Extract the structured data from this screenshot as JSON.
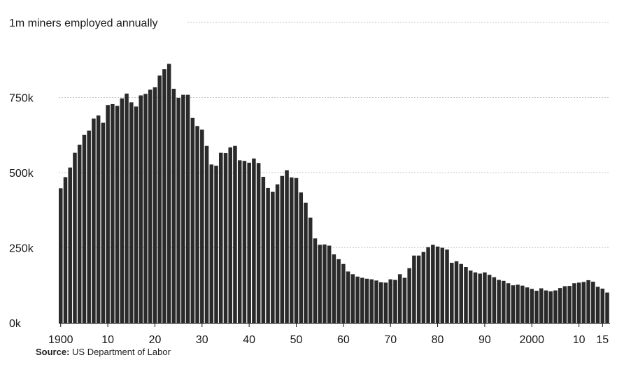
{
  "chart_data": {
    "type": "bar",
    "y_tick_labels": [
      "0k",
      "250k",
      "500k",
      "750k",
      "1m miners employed annually"
    ],
    "y_tick_values": [
      0,
      250000,
      500000,
      750000,
      1000000
    ],
    "ylim": [
      0,
      1000000
    ],
    "x_tick_labels": [
      "1900",
      "10",
      "20",
      "30",
      "40",
      "50",
      "60",
      "70",
      "80",
      "90",
      "2000",
      "10",
      "15"
    ],
    "x_tick_years": [
      1900,
      1910,
      1920,
      1930,
      1940,
      1950,
      1960,
      1970,
      1980,
      1990,
      2000,
      2010,
      2015
    ],
    "x_start_year": 1900,
    "values": [
      448000,
      485000,
      517000,
      566000,
      593000,
      626000,
      640000,
      680000,
      690000,
      666000,
      725000,
      728000,
      722000,
      747000,
      763000,
      734000,
      720000,
      757000,
      762000,
      776000,
      784000,
      823000,
      844000,
      862000,
      779000,
      749000,
      759000,
      759000,
      682000,
      655000,
      643000,
      589000,
      527000,
      523000,
      566000,
      565000,
      584000,
      589000,
      541000,
      539000,
      533000,
      547000,
      532000,
      486000,
      449000,
      436000,
      461000,
      489000,
      508000,
      484000,
      482000,
      434000,
      400000,
      350000,
      281000,
      260000,
      261000,
      257000,
      228000,
      212000,
      196000,
      171000,
      162000,
      154000,
      150000,
      147000,
      145000,
      141000,
      135000,
      134000,
      145000,
      143000,
      162000,
      150000,
      182000,
      224000,
      224000,
      236000,
      252000,
      260000,
      254000,
      250000,
      244000,
      200000,
      205000,
      196000,
      186000,
      174000,
      168000,
      164000,
      168000,
      160000,
      152000,
      143000,
      140000,
      132000,
      125000,
      127000,
      124000,
      118000,
      113000,
      107000,
      115000,
      108000,
      105000,
      108000,
      116000,
      122000,
      123000,
      132000,
      134000,
      136000,
      142000,
      137000,
      120000,
      114000,
      101000
    ]
  },
  "source": {
    "label": "Source:",
    "text": " US Department of Labor"
  },
  "colors": {
    "bar": "#2a2a2a",
    "grid": "#b5b5b5",
    "text": "#1a1a1a"
  }
}
